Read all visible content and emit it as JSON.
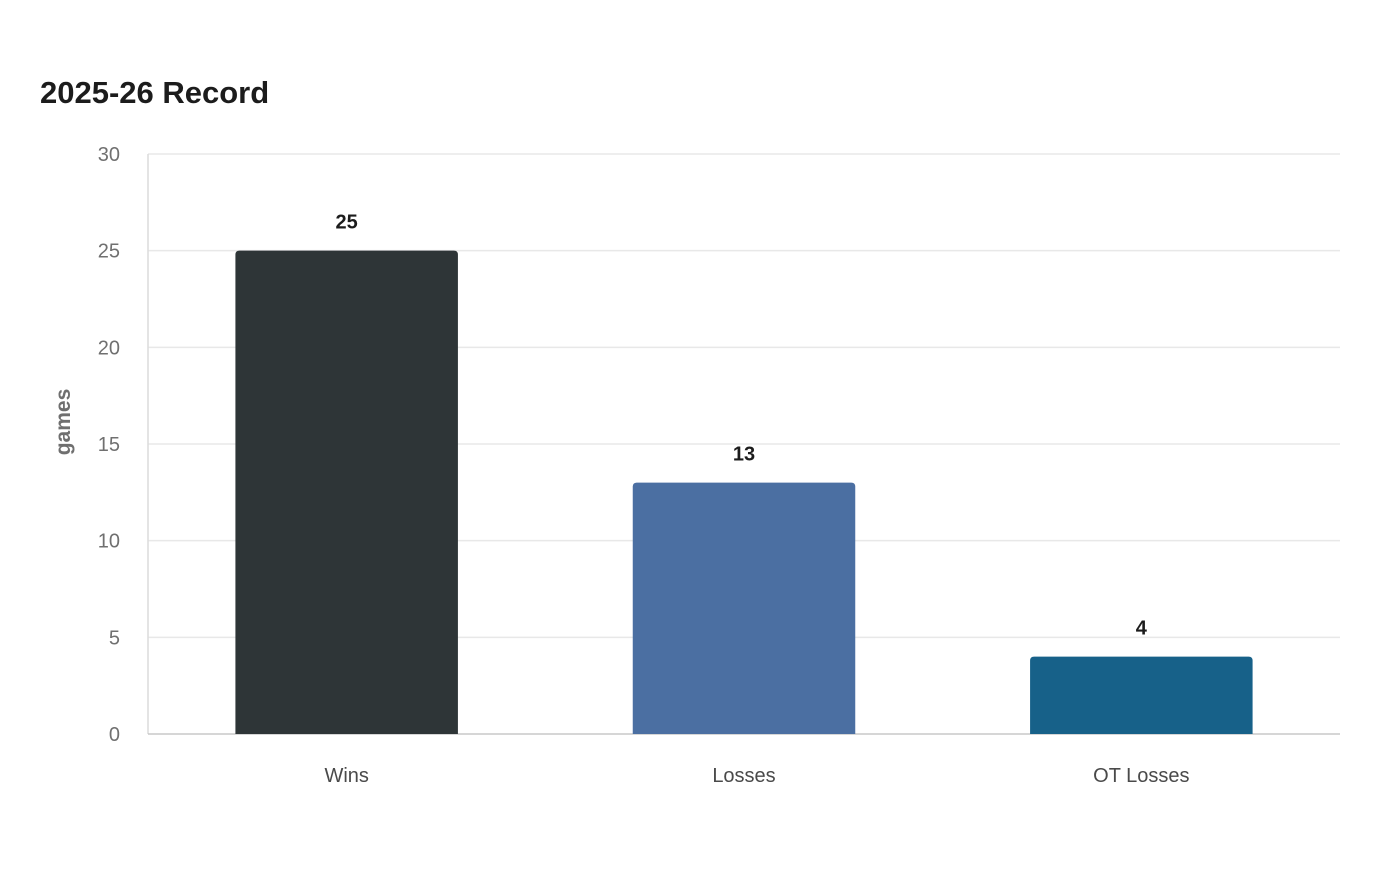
{
  "chart_data": {
    "type": "bar",
    "title": "2025-26 Record",
    "xlabel": "",
    "ylabel": "games",
    "categories": [
      "Wins",
      "Losses",
      "OT Losses"
    ],
    "values": [
      25,
      13,
      4
    ],
    "colors": [
      "#2e3537",
      "#4b6fa2",
      "#176189"
    ],
    "ylim": [
      0,
      30
    ],
    "yticks": [
      0,
      5,
      10,
      15,
      20,
      25,
      30
    ],
    "grid": true,
    "data_labels": true
  }
}
